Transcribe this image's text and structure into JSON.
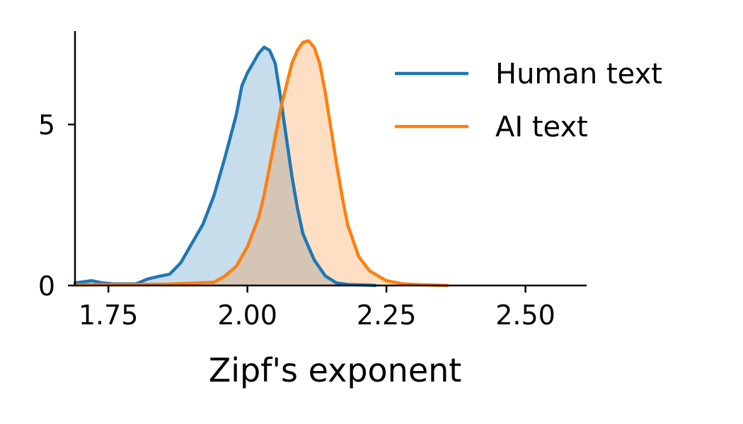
{
  "chart_data": {
    "type": "area",
    "title": "",
    "xlabel": "Zipf's exponent",
    "ylabel": "",
    "xlim": [
      1.69,
      2.61
    ],
    "ylim": [
      0,
      7.9
    ],
    "xticks": [
      1.75,
      2.0,
      2.25,
      2.5
    ],
    "xtick_labels": [
      "1.75",
      "2.00",
      "2.25",
      "2.50"
    ],
    "yticks": [
      0,
      5
    ],
    "ytick_labels": [
      "0",
      "5"
    ],
    "grid": false,
    "legend_position": "top-right",
    "series": [
      {
        "name": "Human text",
        "color": "#1f77b4",
        "fill_color": "#c5d9ec",
        "x": [
          1.69,
          1.7,
          1.72,
          1.74,
          1.76,
          1.78,
          1.8,
          1.82,
          1.84,
          1.86,
          1.88,
          1.9,
          1.92,
          1.94,
          1.96,
          1.98,
          1.99,
          2.0,
          2.01,
          2.02,
          2.03,
          2.04,
          2.05,
          2.06,
          2.07,
          2.08,
          2.09,
          2.1,
          2.12,
          2.14,
          2.16,
          2.18,
          2.2,
          2.22,
          2.23
        ],
        "y": [
          0.08,
          0.1,
          0.15,
          0.08,
          0.05,
          0.05,
          0.05,
          0.2,
          0.28,
          0.35,
          0.7,
          1.3,
          1.9,
          2.8,
          4.0,
          5.3,
          6.2,
          6.6,
          6.9,
          7.2,
          7.4,
          7.3,
          6.9,
          5.8,
          4.6,
          3.4,
          2.4,
          1.6,
          0.8,
          0.3,
          0.08,
          0.03,
          0.02,
          0.01,
          0.0
        ]
      },
      {
        "name": "AI text",
        "color": "#ff7f0e",
        "fill_color": "#fedbbd",
        "x": [
          1.69,
          1.75,
          1.8,
          1.85,
          1.9,
          1.94,
          1.96,
          1.98,
          2.0,
          2.02,
          2.03,
          2.04,
          2.05,
          2.06,
          2.07,
          2.08,
          2.09,
          2.1,
          2.11,
          2.12,
          2.13,
          2.14,
          2.15,
          2.16,
          2.17,
          2.18,
          2.2,
          2.22,
          2.25,
          2.28,
          2.32,
          2.36
        ],
        "y": [
          0.02,
          0.03,
          0.03,
          0.04,
          0.07,
          0.1,
          0.3,
          0.6,
          1.2,
          2.1,
          2.8,
          3.7,
          4.6,
          5.5,
          6.2,
          6.9,
          7.3,
          7.55,
          7.6,
          7.4,
          6.9,
          6.0,
          4.9,
          3.8,
          2.8,
          1.9,
          0.9,
          0.45,
          0.15,
          0.05,
          0.02,
          0.0
        ]
      }
    ]
  }
}
